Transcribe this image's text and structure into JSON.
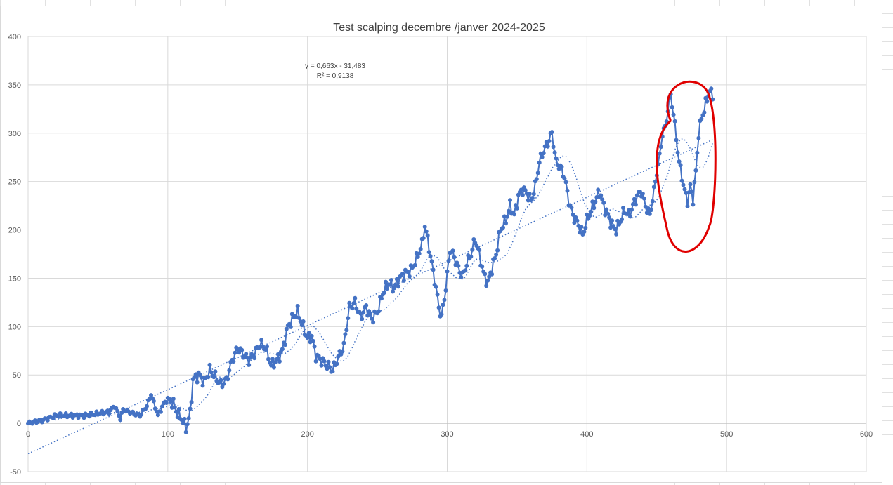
{
  "chart_data": {
    "type": "scatter",
    "title": "Test scalping decembre /janver 2024-2025",
    "xlim": [
      0,
      600
    ],
    "ylim": [
      -50,
      400
    ],
    "x_ticks": [
      "0",
      "100",
      "200",
      "300",
      "400",
      "500",
      "600"
    ],
    "y_ticks": [
      "-50",
      "0",
      "50",
      "100",
      "150",
      "200",
      "250",
      "300",
      "350",
      "400"
    ],
    "grid": true,
    "series_color": "#4472C4",
    "annotation_color": "#E00000",
    "trendline": {
      "type": "linear",
      "slope": 0.663,
      "intercept": -31.483,
      "equation": "y = 0,663x - 31,483",
      "r_squared": "R² = 0,9138"
    },
    "keypoints": [
      [
        0,
        0
      ],
      [
        10,
        3
      ],
      [
        20,
        8
      ],
      [
        30,
        8
      ],
      [
        40,
        8
      ],
      [
        50,
        10
      ],
      [
        58,
        12
      ],
      [
        62,
        18
      ],
      [
        66,
        5
      ],
      [
        68,
        14
      ],
      [
        72,
        12
      ],
      [
        80,
        8
      ],
      [
        85,
        18
      ],
      [
        88,
        30
      ],
      [
        93,
        8
      ],
      [
        97,
        20
      ],
      [
        100,
        25
      ],
      [
        104,
        20
      ],
      [
        107,
        10
      ],
      [
        110,
        5
      ],
      [
        113,
        -5
      ],
      [
        116,
        10
      ],
      [
        118,
        45
      ],
      [
        122,
        50
      ],
      [
        126,
        43
      ],
      [
        130,
        55
      ],
      [
        134,
        48
      ],
      [
        138,
        40
      ],
      [
        142,
        45
      ],
      [
        146,
        65
      ],
      [
        150,
        78
      ],
      [
        155,
        70
      ],
      [
        158,
        65
      ],
      [
        162,
        72
      ],
      [
        166,
        82
      ],
      [
        170,
        78
      ],
      [
        174,
        60
      ],
      [
        178,
        65
      ],
      [
        182,
        75
      ],
      [
        186,
        100
      ],
      [
        190,
        110
      ],
      [
        193,
        115
      ],
      [
        196,
        103
      ],
      [
        200,
        88
      ],
      [
        203,
        90
      ],
      [
        206,
        70
      ],
      [
        210,
        65
      ],
      [
        214,
        60
      ],
      [
        218,
        55
      ],
      [
        222,
        68
      ],
      [
        226,
        80
      ],
      [
        230,
        120
      ],
      [
        234,
        125
      ],
      [
        238,
        110
      ],
      [
        242,
        120
      ],
      [
        246,
        108
      ],
      [
        250,
        115
      ],
      [
        254,
        135
      ],
      [
        258,
        145
      ],
      [
        262,
        140
      ],
      [
        266,
        150
      ],
      [
        270,
        155
      ],
      [
        274,
        158
      ],
      [
        278,
        170
      ],
      [
        282,
        185
      ],
      [
        284,
        205
      ],
      [
        286,
        190
      ],
      [
        289,
        165
      ],
      [
        292,
        140
      ],
      [
        294,
        120
      ],
      [
        296,
        110
      ],
      [
        299,
        140
      ],
      [
        302,
        180
      ],
      [
        305,
        172
      ],
      [
        308,
        160
      ],
      [
        311,
        152
      ],
      [
        314,
        165
      ],
      [
        317,
        175
      ],
      [
        320,
        190
      ],
      [
        323,
        175
      ],
      [
        326,
        155
      ],
      [
        329,
        145
      ],
      [
        332,
        160
      ],
      [
        335,
        175
      ],
      [
        338,
        200
      ],
      [
        342,
        210
      ],
      [
        345,
        225
      ],
      [
        348,
        215
      ],
      [
        351,
        235
      ],
      [
        354,
        242
      ],
      [
        357,
        238
      ],
      [
        360,
        230
      ],
      [
        363,
        245
      ],
      [
        366,
        270
      ],
      [
        369,
        282
      ],
      [
        372,
        290
      ],
      [
        375,
        300
      ],
      [
        378,
        270
      ],
      [
        381,
        265
      ],
      [
        384,
        255
      ],
      [
        387,
        230
      ],
      [
        390,
        215
      ],
      [
        394,
        205
      ],
      [
        397,
        195
      ],
      [
        400,
        210
      ],
      [
        403,
        220
      ],
      [
        406,
        230
      ],
      [
        409,
        240
      ],
      [
        412,
        225
      ],
      [
        415,
        215
      ],
      [
        418,
        205
      ],
      [
        421,
        200
      ],
      [
        424,
        210
      ],
      [
        427,
        220
      ],
      [
        430,
        215
      ],
      [
        433,
        225
      ],
      [
        436,
        235
      ],
      [
        439,
        240
      ],
      [
        442,
        225
      ],
      [
        445,
        215
      ],
      [
        448,
        240
      ],
      [
        450,
        260
      ],
      [
        452,
        275
      ],
      [
        454,
        300
      ],
      [
        456,
        305
      ],
      [
        458,
        325
      ],
      [
        460,
        340
      ],
      [
        462,
        320
      ],
      [
        464,
        295
      ],
      [
        466,
        270
      ],
      [
        468,
        255
      ],
      [
        470,
        240
      ],
      [
        472,
        230
      ],
      [
        474,
        245
      ],
      [
        476,
        232
      ],
      [
        478,
        260
      ],
      [
        480,
        300
      ],
      [
        482,
        315
      ],
      [
        484,
        325
      ],
      [
        486,
        335
      ],
      [
        488,
        345
      ],
      [
        490,
        335
      ]
    ]
  }
}
